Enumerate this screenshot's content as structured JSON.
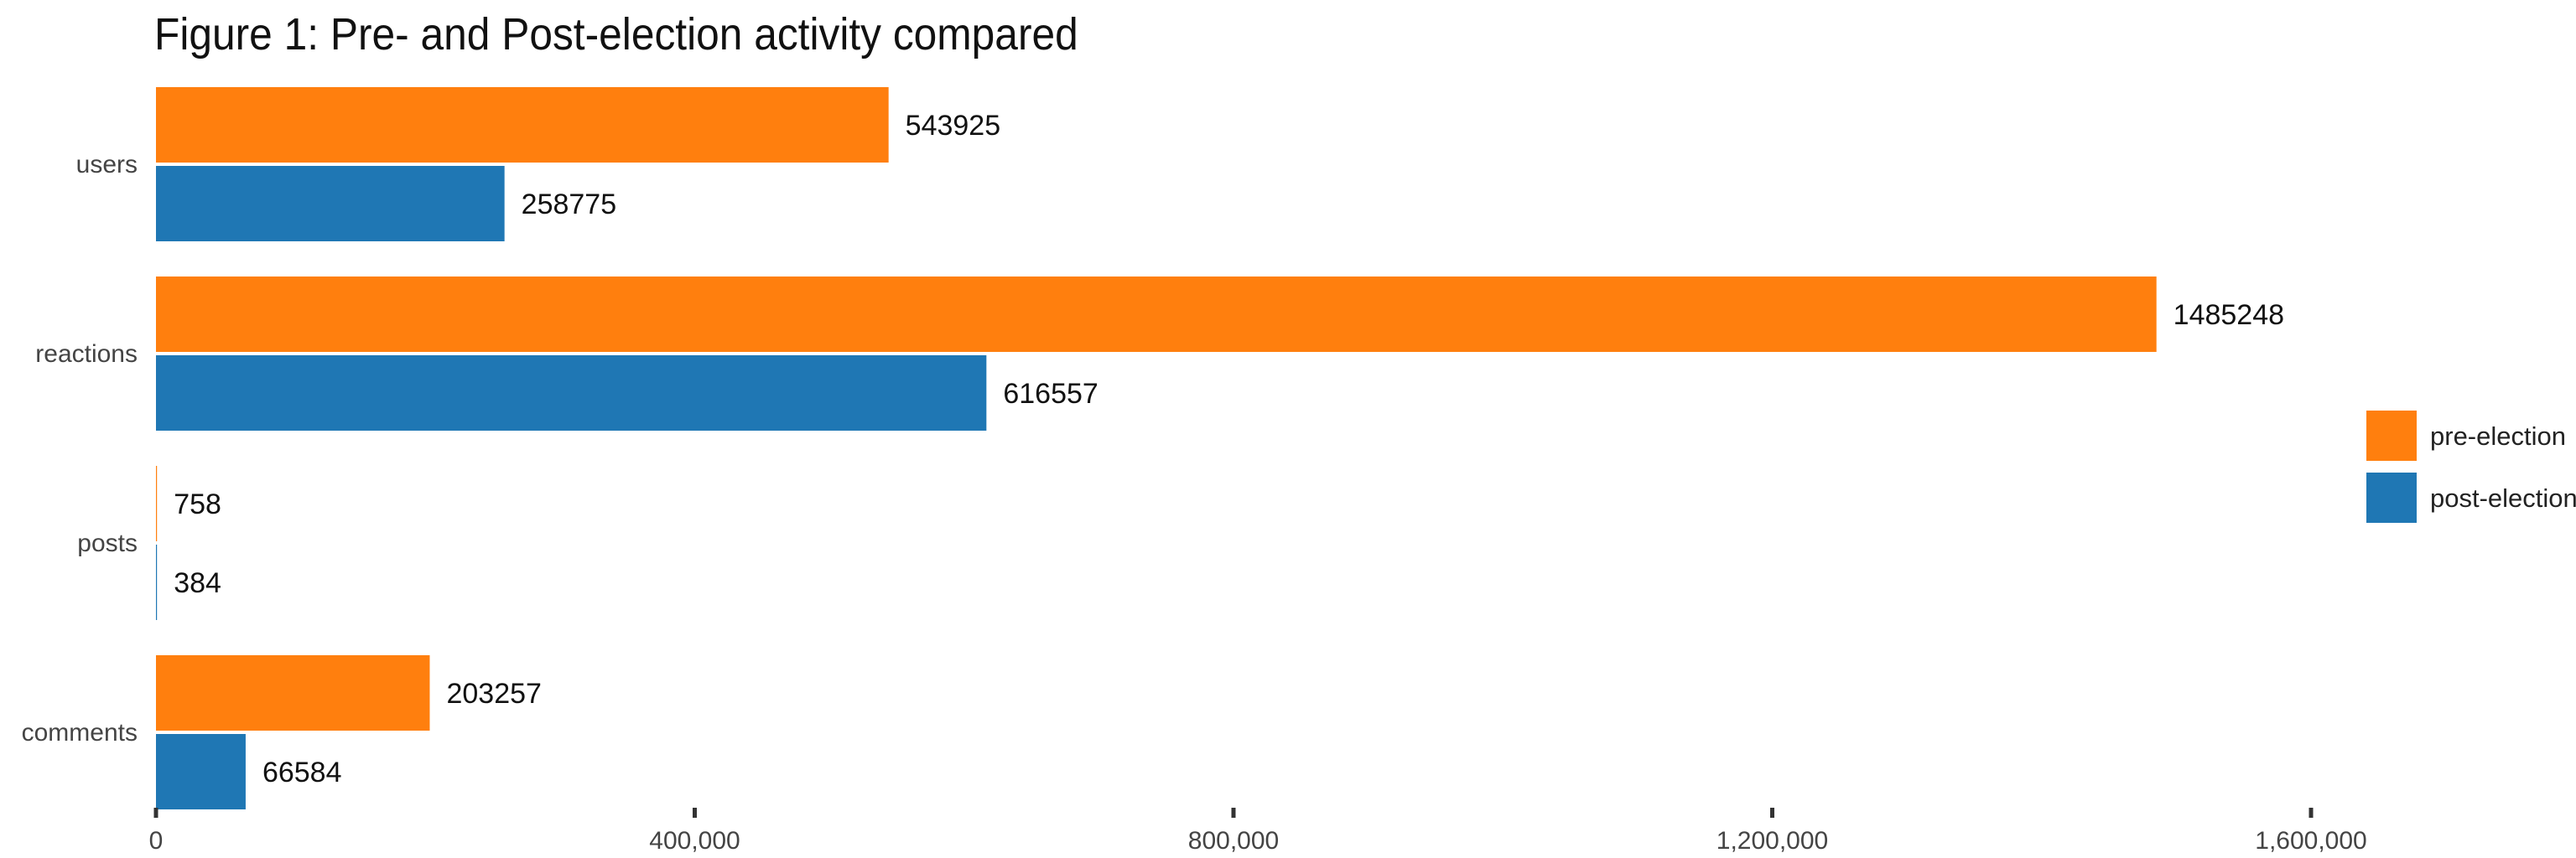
{
  "chart_data": {
    "type": "bar",
    "orientation": "horizontal",
    "title": "Figure 1: Pre- and Post-election activity compared",
    "xlabel": "",
    "ylabel": "",
    "categories": [
      "users",
      "reactions",
      "posts",
      "comments"
    ],
    "series": [
      {
        "name": "pre-election",
        "color": "#FF7F0E",
        "values": [
          543925,
          1485248,
          758,
          203257
        ],
        "labels": [
          "543925",
          "1485248",
          "758",
          "203257"
        ]
      },
      {
        "name": "post-election",
        "color": "#1F77B4",
        "values": [
          258775,
          616557,
          384,
          66584
        ],
        "labels": [
          "258775",
          "616557",
          "384",
          "66584"
        ]
      }
    ],
    "xlim": [
      0,
      1800000
    ],
    "xticks": [
      0,
      400000,
      800000,
      1200000,
      1600000
    ],
    "xtick_labels": [
      "0",
      "400,000",
      "800,000",
      "1,200,000",
      "1,600,000"
    ],
    "grid": false,
    "legend_position": "right"
  }
}
